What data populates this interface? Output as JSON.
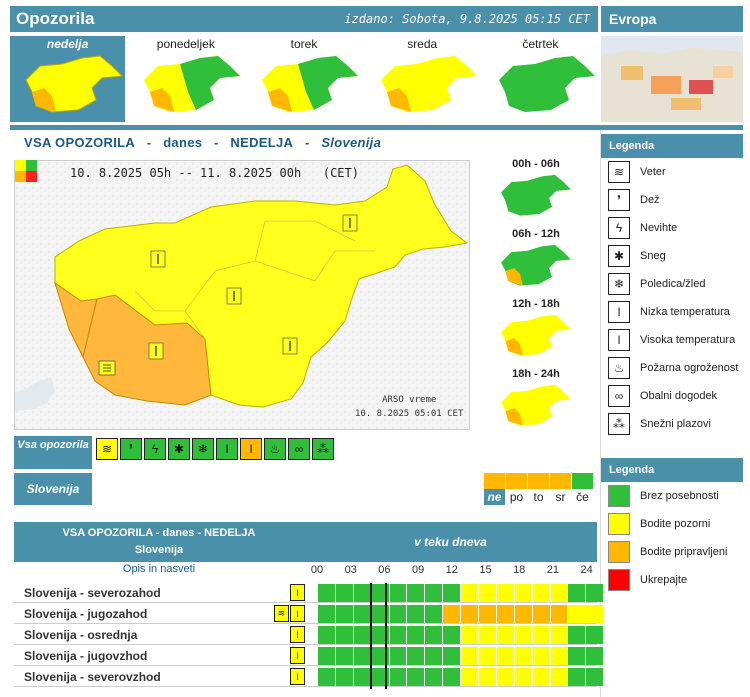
{
  "header": {
    "title": "Opozorila",
    "issued": "izdano: Sobota, 9.8.2025 05:15 CET",
    "europe": "Evropa"
  },
  "days": [
    "nedelja",
    "ponedeljek",
    "torek",
    "sreda",
    "četrtek"
  ],
  "subheader": {
    "part1": "VSA OPOZORILA",
    "sep": "-",
    "part2": "danes",
    "part3": "NEDELJA",
    "part4": "Slovenija"
  },
  "map": {
    "period": "10. 8.2025 05h -- 11. 8.2025 00h   (CET)",
    "credit1": "ARSO vreme",
    "credit2": "10. 8.2025  05:01 CET"
  },
  "periods": [
    "00h - 06h",
    "06h - 12h",
    "12h - 18h",
    "18h - 24h"
  ],
  "type_row": {
    "label": "Vsa opozorila"
  },
  "slo_row": {
    "label": "Slovenija"
  },
  "day_strip": [
    "ne",
    "po",
    "to",
    "sr",
    "če"
  ],
  "day_strip_colors": [
    "#ffb700",
    "#ffb700",
    "#ffb700",
    "#ffb700",
    "#2fbf3a"
  ],
  "table": {
    "head_left_1": "VSA OPOZORILA - danes - NEDELJA",
    "head_left_2": "Slovenija",
    "head_right": "v teku dneva",
    "opis": "Opis in nasveti",
    "hours": [
      "00",
      "03",
      "06",
      "09",
      "12",
      "15",
      "18",
      "21",
      "24"
    ],
    "rows": [
      {
        "name": "Slovenija - severozahod",
        "icons": [
          "temp-high"
        ],
        "levels": [
          "g",
          "g",
          "g",
          "g",
          "g",
          "g",
          "g",
          "g",
          "y",
          "y",
          "y",
          "y",
          "y",
          "y",
          "g",
          "g"
        ]
      },
      {
        "name": "Slovenija - jugozahod",
        "icons": [
          "wind",
          "temp-high"
        ],
        "levels": [
          "g",
          "g",
          "g",
          "g",
          "g",
          "g",
          "g",
          "o",
          "o",
          "o",
          "o",
          "o",
          "o",
          "o",
          "y",
          "y"
        ]
      },
      {
        "name": "Slovenija - osrednja",
        "icons": [
          "temp-high"
        ],
        "levels": [
          "g",
          "g",
          "g",
          "g",
          "g",
          "g",
          "g",
          "g",
          "y",
          "y",
          "y",
          "y",
          "y",
          "y",
          "g",
          "g"
        ]
      },
      {
        "name": "Slovenija - jugovzhod",
        "icons": [
          "temp-high"
        ],
        "levels": [
          "g",
          "g",
          "g",
          "g",
          "g",
          "g",
          "g",
          "g",
          "y",
          "y",
          "y",
          "y",
          "y",
          "y",
          "g",
          "g"
        ]
      },
      {
        "name": "Slovenija - severovzhod",
        "icons": [
          "temp-high"
        ],
        "levels": [
          "g",
          "g",
          "g",
          "g",
          "g",
          "g",
          "g",
          "g",
          "y",
          "y",
          "y",
          "y",
          "y",
          "y",
          "g",
          "g"
        ]
      }
    ]
  },
  "legend1": {
    "title": "Legenda",
    "items": [
      "Veter",
      "Dež",
      "Nevihte",
      "Sneg",
      "Poledica/žled",
      "Nizka temperatura",
      "Visoka temperatura",
      "Požarna ogroženost",
      "Obalni dogodek",
      "Snežni plazovi"
    ]
  },
  "legend2": {
    "title": "Legenda",
    "items": [
      "Brez posebnosti",
      "Bodite pozorni",
      "Bodite pripravljeni",
      "Ukrepajte"
    ],
    "colors": [
      "#2fbf3a",
      "#ffff00",
      "#ffb700",
      "#ff0000"
    ]
  }
}
